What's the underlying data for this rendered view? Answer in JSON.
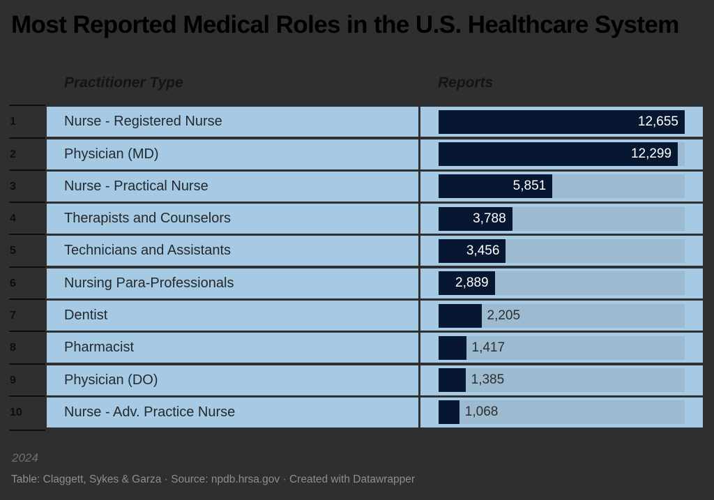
{
  "title": "Most Reported Medical Roles in the U.S. Healthcare System",
  "columns": {
    "practitioner": "Practitioner Type",
    "reports": "Reports"
  },
  "chart_data": {
    "type": "bar",
    "title": "Most Reported Medical Roles in the U.S. Healthcare System",
    "xlabel": "Reports",
    "ylabel": "Practitioner Type",
    "xlim": [
      0,
      12655
    ],
    "grid": false,
    "legend": "none",
    "categories": [
      "Nurse - Registered Nurse",
      "Physician (MD)",
      "Nurse - Practical Nurse",
      "Therapists and Counselors",
      "Technicians and Assistants",
      "Nursing Para-Professionals",
      "Dentist",
      "Pharmacist",
      "Physician (DO)",
      "Nurse - Adv. Practice Nurse"
    ],
    "values": [
      12655,
      12299,
      5851,
      3788,
      3456,
      2889,
      2205,
      1417,
      1385,
      1068
    ],
    "value_labels": [
      "12,655",
      "12,299",
      "5,851",
      "3,788",
      "3,456",
      "2,889",
      "2,205",
      "1,417",
      "1,385",
      "1,068"
    ],
    "ranks": [
      "1",
      "2",
      "3",
      "4",
      "5",
      "6",
      "7",
      "8",
      "9",
      "10"
    ]
  },
  "colors": {
    "background": "#2f2f2f",
    "row_background": "#a6c9e4",
    "bar_track": "#9cbbd0",
    "bar_fill": "#081731",
    "value_inside": "#ffffff",
    "value_outside": "#2e2e2e",
    "title_text": "#000000",
    "footer_text": "#8e8e8e"
  },
  "footer": {
    "note": "2024",
    "table_credit": "Table: Claggett, Sykes & Garza",
    "source_label": "Source:",
    "source_link": "npdb.hrsa.gov",
    "created": "Created with Datawrapper",
    "separator": "·"
  }
}
